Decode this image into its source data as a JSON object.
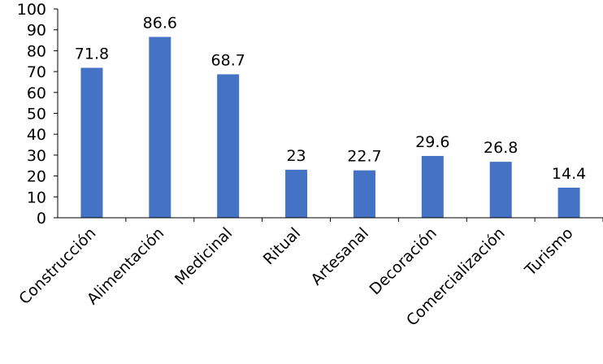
{
  "chart_data": {
    "type": "bar",
    "categories": [
      "Construcción",
      "Alimentación",
      "Medicinal",
      "Ritual",
      "Artesanal",
      "Decoración",
      "Comercialización",
      "Turismo"
    ],
    "values": [
      71.8,
      86.6,
      68.7,
      23,
      22.7,
      29.6,
      26.8,
      14.4
    ],
    "data_labels": [
      "71.8",
      "86.6",
      "68.7",
      "23",
      "22.7",
      "29.6",
      "26.8",
      "14.4"
    ],
    "y_ticks": [
      "0",
      "10",
      "20",
      "30",
      "40",
      "50",
      "60",
      "70",
      "80",
      "90",
      "100"
    ],
    "ylim": [
      0,
      100
    ],
    "title": "",
    "xlabel": "",
    "ylabel": "",
    "grid": false,
    "legend": "none",
    "bar_color": "#4472C4"
  }
}
